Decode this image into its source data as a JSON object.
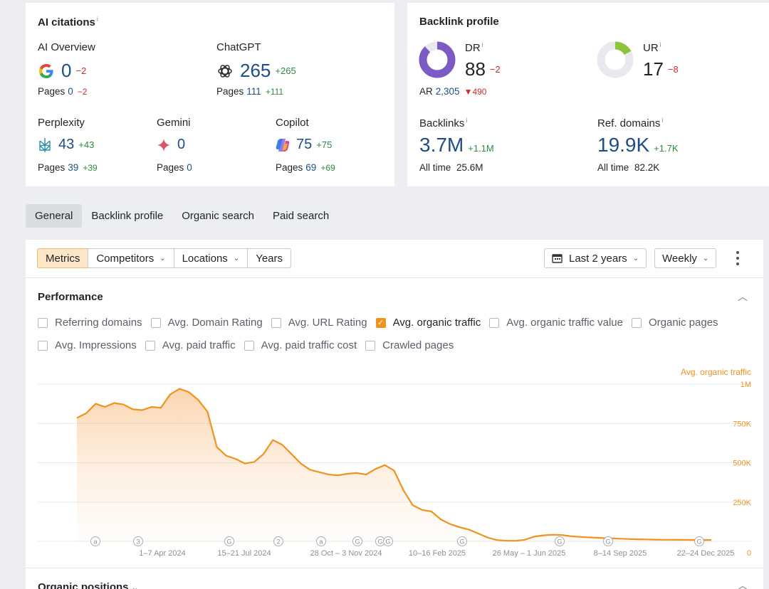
{
  "ai_citations": {
    "title": "AI citations",
    "info": "i",
    "pages_label": "Pages",
    "ai_overview": {
      "label": "AI Overview",
      "value": "0",
      "delta": "−2",
      "pages": "0",
      "pages_delta": "−2",
      "icon": "google-icon"
    },
    "chatgpt": {
      "label": "ChatGPT",
      "value": "265",
      "delta": "+265",
      "pages": "111",
      "pages_delta": "+111",
      "icon": "chatgpt-icon"
    },
    "perplexity": {
      "label": "Perplexity",
      "value": "43",
      "delta": "+43",
      "pages": "39",
      "pages_delta": "+39",
      "icon": "perplexity-icon"
    },
    "gemini": {
      "label": "Gemini",
      "value": "0",
      "pages": "0",
      "icon": "gemini-icon"
    },
    "copilot": {
      "label": "Copilot",
      "value": "75",
      "delta": "+75",
      "pages": "69",
      "pages_delta": "+69",
      "icon": "copilot-icon"
    }
  },
  "backlink_profile": {
    "title": "Backlink profile",
    "info": "i",
    "dr": {
      "label": "DR",
      "value": "88",
      "delta": "−2",
      "ring_fraction": 0.88
    },
    "ar": {
      "label": "AR",
      "value": "2,305",
      "delta": "490"
    },
    "ur": {
      "label": "UR",
      "value": "17",
      "delta": "−8",
      "ring_fraction": 0.17
    },
    "backlinks": {
      "label": "Backlinks",
      "value": "3.7M",
      "delta": "+1.1M",
      "alltime_label": "All time",
      "alltime": "25.6M"
    },
    "ref_domains": {
      "label": "Ref. domains",
      "value": "19.9K",
      "delta": "+1.7K",
      "alltime_label": "All time",
      "alltime": "82.2K"
    }
  },
  "tabs": [
    "General",
    "Backlink profile",
    "Organic search",
    "Paid search"
  ],
  "toolbar": {
    "metrics": "Metrics",
    "competitors": "Competitors",
    "locations": "Locations",
    "years": "Years",
    "range": "Last 2 years",
    "interval": "Weekly"
  },
  "performance": {
    "title": "Performance",
    "checkboxes_row1": [
      {
        "label": "Referring domains",
        "checked": false
      },
      {
        "label": "Avg. Domain Rating",
        "checked": false
      },
      {
        "label": "Avg. URL Rating",
        "checked": false
      },
      {
        "label": "Avg. organic traffic",
        "checked": true
      },
      {
        "label": "Avg. organic traffic value",
        "checked": false
      },
      {
        "label": "Organic pages",
        "checked": false
      }
    ],
    "checkboxes_row2": [
      {
        "label": "Avg. Impressions",
        "checked": false
      },
      {
        "label": "Avg. paid traffic",
        "checked": false
      },
      {
        "label": "Avg. paid traffic cost",
        "checked": false
      },
      {
        "label": "Crawled pages",
        "checked": false
      }
    ]
  },
  "chart_data": {
    "type": "area",
    "series_name": "Avg. organic traffic",
    "color": "#f0921e",
    "ylim": [
      0,
      1000000
    ],
    "y_ticks": [
      "1M",
      "750K",
      "500K",
      "250K",
      "0"
    ],
    "x_labels": [
      "1–7 Apr 2024",
      "15–21 Jul 2024",
      "28 Oct – 3 Nov 2024",
      "10–16 Feb 2025",
      "26 May – 1 Jun 2025",
      "8–14 Sep 2025",
      "22–24 Dec 2025"
    ],
    "annotations": [
      "a",
      "3",
      "G",
      "2",
      "a",
      "G",
      "G",
      "G",
      "G",
      "G",
      "G",
      "G"
    ],
    "values": [
      785000,
      815000,
      875000,
      855000,
      880000,
      870000,
      840000,
      835000,
      855000,
      850000,
      935000,
      970000,
      950000,
      900000,
      825000,
      600000,
      545000,
      525000,
      495000,
      505000,
      555000,
      645000,
      615000,
      555000,
      495000,
      455000,
      440000,
      425000,
      420000,
      430000,
      435000,
      425000,
      460000,
      485000,
      450000,
      325000,
      230000,
      200000,
      190000,
      140000,
      110000,
      90000,
      75000,
      50000,
      25000,
      8000,
      4000,
      3000,
      10000,
      30000,
      38000,
      42000,
      40000,
      32000,
      28000,
      25000,
      22000,
      20000,
      17000,
      15000,
      13000,
      12000,
      11000,
      10000,
      10000,
      9500,
      9000,
      9000,
      8500
    ]
  },
  "organic_positions": "Organic positions"
}
